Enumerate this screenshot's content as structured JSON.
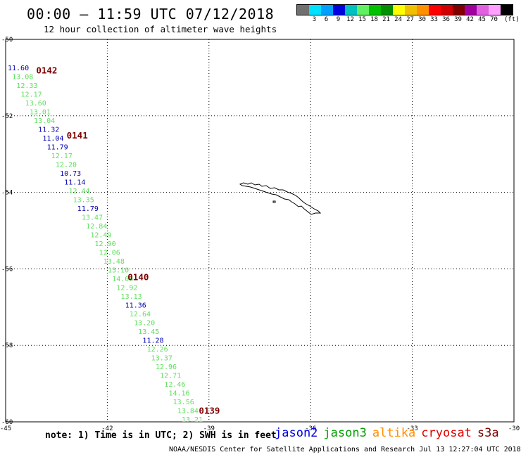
{
  "header": {
    "title": "00:00 – 11:59 UTC 07/12/2018",
    "subtitle": "12 hour collection of altimeter wave heights"
  },
  "legend": {
    "unit": "(ft)",
    "swatches": [
      {
        "label": "",
        "color": "#707070"
      },
      {
        "label": "3",
        "color": "#00e0ff"
      },
      {
        "label": "6",
        "color": "#00a0ff"
      },
      {
        "label": "9",
        "color": "#0000e0"
      },
      {
        "label": "12",
        "color": "#00c0c0"
      },
      {
        "label": "15",
        "color": "#60f060"
      },
      {
        "label": "18",
        "color": "#00c000"
      },
      {
        "label": "21",
        "color": "#009000"
      },
      {
        "label": "24",
        "color": "#ffff00"
      },
      {
        "label": "27",
        "color": "#f0c000"
      },
      {
        "label": "30",
        "color": "#ff9000"
      },
      {
        "label": "33",
        "color": "#ff0000"
      },
      {
        "label": "36",
        "color": "#d00000"
      },
      {
        "label": "39",
        "color": "#800000"
      },
      {
        "label": "42",
        "color": "#a000a0"
      },
      {
        "label": "45",
        "color": "#e060e0"
      },
      {
        "label": "70",
        "color": "#ffa0ff"
      },
      {
        "label": "",
        "color": "#000000"
      }
    ]
  },
  "map": {
    "lon_range": [
      -45,
      -30
    ],
    "lat_range": [
      -60,
      -50
    ],
    "lon_ticks": [
      "-45",
      "-42",
      "-39",
      "-36",
      "-33",
      "-30"
    ],
    "lat_ticks": [
      "-50",
      "-52",
      "-54",
      "-56",
      "-58",
      "-60"
    ],
    "blue_color": "#0000b0",
    "green_color": "#60e060",
    "passes": [
      {
        "label": "0142",
        "lon": -44.1,
        "lat": -50.8
      },
      {
        "label": "0141",
        "lon": -43.2,
        "lat": -52.5
      },
      {
        "label": "0140",
        "lon": -41.4,
        "lat": -56.2
      },
      {
        "label": "0139",
        "lon": -39.3,
        "lat": -59.7
      }
    ],
    "observations": [
      {
        "v": "11.60",
        "c": "b"
      },
      {
        "v": "13.08",
        "c": "g"
      },
      {
        "v": "12.33",
        "c": "g"
      },
      {
        "v": "12.17",
        "c": "g"
      },
      {
        "v": "13.60",
        "c": "g"
      },
      {
        "v": "13.01",
        "c": "g"
      },
      {
        "v": "13.04",
        "c": "g"
      },
      {
        "v": "11.32",
        "c": "b"
      },
      {
        "v": "11.04",
        "c": "b"
      },
      {
        "v": "11.79",
        "c": "b"
      },
      {
        "v": "12.17",
        "c": "g"
      },
      {
        "v": "12.20",
        "c": "g"
      },
      {
        "v": "10.73",
        "c": "b"
      },
      {
        "v": "11.14",
        "c": "b"
      },
      {
        "v": "12.44",
        "c": "g"
      },
      {
        "v": "13.35",
        "c": "g"
      },
      {
        "v": "11.79",
        "c": "b"
      },
      {
        "v": "13.47",
        "c": "g"
      },
      {
        "v": "12.84",
        "c": "g"
      },
      {
        "v": "12.49",
        "c": "g"
      },
      {
        "v": "12.90",
        "c": "g"
      },
      {
        "v": "12.06",
        "c": "g"
      },
      {
        "v": "13.48",
        "c": "g"
      },
      {
        "v": "13.10",
        "c": "g"
      },
      {
        "v": "14.06",
        "c": "g"
      },
      {
        "v": "12.92",
        "c": "g"
      },
      {
        "v": "13.13",
        "c": "g"
      },
      {
        "v": "11.36",
        "c": "b"
      },
      {
        "v": "12.64",
        "c": "g"
      },
      {
        "v": "13.20",
        "c": "g"
      },
      {
        "v": "13.45",
        "c": "g"
      },
      {
        "v": "11.28",
        "c": "b"
      },
      {
        "v": "12.26",
        "c": "g"
      },
      {
        "v": "13.37",
        "c": "g"
      },
      {
        "v": "12.96",
        "c": "g"
      },
      {
        "v": "12.71",
        "c": "g"
      },
      {
        "v": "12.46",
        "c": "g"
      },
      {
        "v": "14.16",
        "c": "g"
      },
      {
        "v": "13.56",
        "c": "g"
      },
      {
        "v": "13.84",
        "c": "g"
      },
      {
        "v": "13.21",
        "c": "g"
      }
    ]
  },
  "footer": {
    "note": "note: 1) Time is in UTC; 2) SWH is in feet",
    "missions": [
      {
        "name": "jason2",
        "color": "#0000e0"
      },
      {
        "name": "jason3",
        "color": "#00a000"
      },
      {
        "name": "altika",
        "color": "#ff9000"
      },
      {
        "name": "cryosat",
        "color": "#e00000"
      },
      {
        "name": "s3a",
        "color": "#800000"
      }
    ],
    "credit": "NOAA/NESDIS Center for Satellite Applications and Research   Jul 13 12:27:04 UTC 2018"
  }
}
